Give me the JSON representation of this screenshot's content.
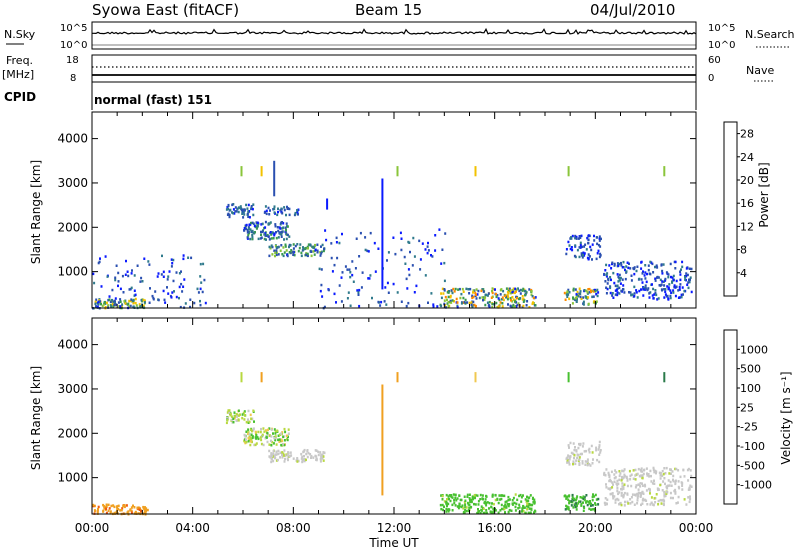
{
  "header": {
    "title": "Syowa East (fitACF)",
    "beam": "Beam 15",
    "date": "04/Jul/2010"
  },
  "status_panels": {
    "nsky_label": "N.Sky",
    "nsearch_label": "N.Search",
    "noise_left_ticks": [
      "10^5",
      "10^0"
    ],
    "noise_right_ticks": [
      "10^5",
      "10^0"
    ],
    "freq_label": "Freq.",
    "freq_unit": "[MHz]",
    "freq_ticks": [
      "18",
      "8"
    ],
    "nave_label": "Nave",
    "nave_ticks": [
      "60",
      "0"
    ],
    "cpid_label": "CPID",
    "cpid_text": "normal (fast) 151"
  },
  "colors": {
    "power_scale": [
      "#0a1aff",
      "#2a4fb0",
      "#2f7a8c",
      "#3a9a4e",
      "#8ac53a",
      "#f2c200",
      "#ff8a00",
      "#f24a00",
      "#d80000"
    ],
    "velocity_scale": [
      "#f01010",
      "#f05a10",
      "#f0a020",
      "#f0c850",
      "#c8c8c8",
      "#b8d840",
      "#48c030",
      "#2a7a4a",
      "#2a50c0"
    ],
    "ground_scatter": "#bcbcbc"
  },
  "chart_data": [
    {
      "type": "heatmap",
      "title": "",
      "xlabel": "",
      "ylabel": "Slant Range [km]",
      "xlim": [
        0,
        24
      ],
      "ylim": [
        180,
        4600
      ],
      "x_ticks": [],
      "y_ticks": [
        "1000",
        "2000",
        "3000",
        "4000"
      ],
      "colorbar": {
        "label": "Power [dB]",
        "ticks": [
          "4",
          "8",
          "12",
          "16",
          "20",
          "24",
          "28"
        ],
        "range": [
          0,
          30
        ]
      },
      "regions": [
        {
          "t": [
            0.0,
            2.2
          ],
          "r": [
            200,
            420
          ],
          "v": [
            5,
            20
          ],
          "d": 0.6
        },
        {
          "t": [
            5.3,
            6.4
          ],
          "r": [
            2250,
            2550
          ],
          "v": [
            2,
            10
          ],
          "d": 0.6
        },
        {
          "t": [
            6.0,
            7.8
          ],
          "r": [
            1750,
            2150
          ],
          "v": [
            2,
            12
          ],
          "d": 0.6
        },
        {
          "t": [
            7.0,
            9.2
          ],
          "r": [
            1380,
            1650
          ],
          "v": [
            3,
            16
          ],
          "d": 0.6
        },
        {
          "t": [
            6.8,
            8.2
          ],
          "r": [
            2300,
            2500
          ],
          "v": [
            2,
            10
          ],
          "d": 0.5
        },
        {
          "t": [
            13.8,
            17.6
          ],
          "r": [
            220,
            650
          ],
          "v": [
            2,
            22
          ],
          "d": 0.5
        },
        {
          "t": [
            18.7,
            20.1
          ],
          "r": [
            280,
            650
          ],
          "v": [
            2,
            22
          ],
          "d": 0.5
        },
        {
          "t": [
            18.8,
            20.2
          ],
          "r": [
            1300,
            1850
          ],
          "v": [
            1,
            8
          ],
          "d": 0.35
        },
        {
          "t": [
            20.3,
            23.8
          ],
          "r": [
            400,
            1250
          ],
          "v": [
            1,
            8
          ],
          "d": 0.3
        },
        {
          "t": [
            0.0,
            4.5
          ],
          "r": [
            200,
            1400
          ],
          "v": [
            1,
            8
          ],
          "d": 0.08
        },
        {
          "t": [
            9.0,
            14.0
          ],
          "r": [
            200,
            2000
          ],
          "v": [
            1,
            8
          ],
          "d": 0.05
        }
      ],
      "streaks": [
        {
          "t": 5.9,
          "r": [
            3150,
            3380
          ],
          "v": 16
        },
        {
          "t": 6.7,
          "r": [
            3150,
            3380
          ],
          "v": 18
        },
        {
          "t": 7.2,
          "r": [
            2700,
            3500
          ],
          "v": 4
        },
        {
          "t": 11.5,
          "r": [
            600,
            3100
          ],
          "v": 3
        },
        {
          "t": 12.1,
          "r": [
            3150,
            3380
          ],
          "v": 16
        },
        {
          "t": 15.2,
          "r": [
            3150,
            3380
          ],
          "v": 18
        },
        {
          "t": 18.9,
          "r": [
            3150,
            3380
          ],
          "v": 14
        },
        {
          "t": 22.7,
          "r": [
            3150,
            3380
          ],
          "v": 16
        },
        {
          "t": 9.3,
          "r": [
            2400,
            2650
          ],
          "v": 2
        }
      ]
    },
    {
      "type": "heatmap",
      "title": "",
      "xlabel": "Time UT",
      "ylabel": "Slant Range [km]",
      "xlim": [
        0,
        24
      ],
      "ylim": [
        180,
        4600
      ],
      "x_ticks": [
        "00:00",
        "04:00",
        "08:00",
        "12:00",
        "16:00",
        "20:00",
        "00:00"
      ],
      "y_ticks": [
        "1000",
        "2000",
        "3000",
        "4000"
      ],
      "colorbar": {
        "label": "Velocity [m s⁻¹]",
        "ticks": [
          "-1000",
          "-500",
          "-100",
          "-25",
          "25",
          "100",
          "500",
          "1000"
        ],
        "range": [
          -1500,
          1500
        ]
      },
      "regions": [
        {
          "t": [
            0.0,
            2.2
          ],
          "r": [
            200,
            420
          ],
          "v": [
            -600,
            -150
          ],
          "d": 0.7
        },
        {
          "t": [
            5.3,
            6.4
          ],
          "r": [
            2250,
            2550
          ],
          "v": [
            -40,
            150
          ],
          "d": 0.6
        },
        {
          "t": [
            6.0,
            7.8
          ],
          "r": [
            1750,
            2150
          ],
          "v": [
            -40,
            150
          ],
          "d": 0.6
        },
        {
          "t": [
            7.0,
            9.2
          ],
          "r": [
            1380,
            1650
          ],
          "v": [
            -20,
            30
          ],
          "d": 0.6
        },
        {
          "t": [
            13.8,
            17.6
          ],
          "r": [
            220,
            650
          ],
          "v": [
            80,
            400
          ],
          "d": 0.55
        },
        {
          "t": [
            18.7,
            20.1
          ],
          "r": [
            280,
            650
          ],
          "v": [
            120,
            600
          ],
          "d": 0.55
        },
        {
          "t": [
            18.8,
            20.2
          ],
          "r": [
            1300,
            1850
          ],
          "v": [
            -20,
            30
          ],
          "d": 0.35
        },
        {
          "t": [
            20.3,
            23.8
          ],
          "r": [
            400,
            1250
          ],
          "v": [
            -20,
            30
          ],
          "d": 0.35
        }
      ],
      "streaks": [
        {
          "t": 5.9,
          "r": [
            3150,
            3380
          ],
          "v": 30
        },
        {
          "t": 6.7,
          "r": [
            3150,
            3380
          ],
          "v": -200
        },
        {
          "t": 11.5,
          "r": [
            600,
            3100
          ],
          "v": -300
        },
        {
          "t": 12.1,
          "r": [
            3150,
            3380
          ],
          "v": -150
        },
        {
          "t": 15.2,
          "r": [
            3150,
            3380
          ],
          "v": -60
        },
        {
          "t": 18.9,
          "r": [
            3150,
            3380
          ],
          "v": 300
        },
        {
          "t": 22.7,
          "r": [
            3150,
            3380
          ],
          "v": 800
        }
      ]
    }
  ]
}
